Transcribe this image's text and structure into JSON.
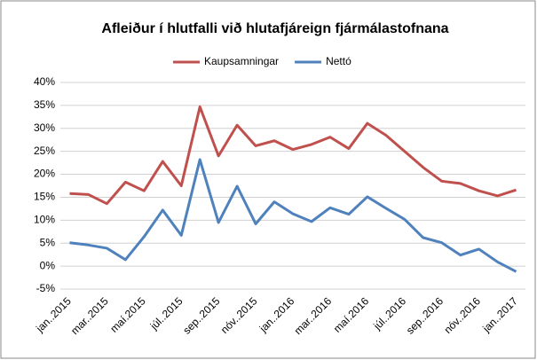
{
  "chart_data": {
    "type": "line",
    "title": "Afleiður í  hlutfalli við hlutafjáreign fjármálastofnana",
    "categories": [
      "jan..2015",
      null,
      "mar..2015",
      null,
      "maí.2015",
      null,
      "júl..2015",
      null,
      "sep..2015",
      null,
      "nóv..2015",
      null,
      "jan..2016",
      null,
      "mar..2016",
      null,
      "maí.2016",
      null,
      "júl..2016",
      null,
      "sep..2016",
      null,
      "nóv..2016",
      null,
      "jan..2017"
    ],
    "series": [
      {
        "name": "Kaupsamningar",
        "color": "#c0504d",
        "values": [
          15.8,
          15.6,
          13.6,
          18.3,
          16.4,
          22.8,
          17.5,
          34.7,
          24.0,
          30.7,
          26.2,
          27.3,
          25.4,
          26.5,
          28.1,
          25.6,
          31.1,
          28.5,
          25.0,
          21.5,
          18.5,
          18.0,
          16.4,
          15.3,
          16.6
        ]
      },
      {
        "name": "Nettó",
        "color": "#4f81bd",
        "values": [
          5.1,
          4.6,
          3.9,
          1.4,
          6.4,
          12.2,
          6.7,
          23.2,
          9.5,
          17.4,
          9.2,
          14.0,
          11.4,
          9.7,
          12.7,
          11.3,
          15.1,
          12.6,
          10.2,
          6.2,
          5.1,
          2.4,
          3.7,
          0.9,
          -1.2
        ]
      }
    ],
    "ylim": [
      -5,
      40
    ],
    "yticks": [
      {
        "value": -5,
        "label": "-5%"
      },
      {
        "value": 0,
        "label": "0%"
      },
      {
        "value": 5,
        "label": "5%"
      },
      {
        "value": 10,
        "label": "10%"
      },
      {
        "value": 15,
        "label": "15%"
      },
      {
        "value": 20,
        "label": "20%"
      },
      {
        "value": 25,
        "label": "25%"
      },
      {
        "value": 30,
        "label": "30%"
      },
      {
        "value": 35,
        "label": "35%"
      },
      {
        "value": 40,
        "label": "40%"
      }
    ],
    "grid": true,
    "legend": "top"
  }
}
